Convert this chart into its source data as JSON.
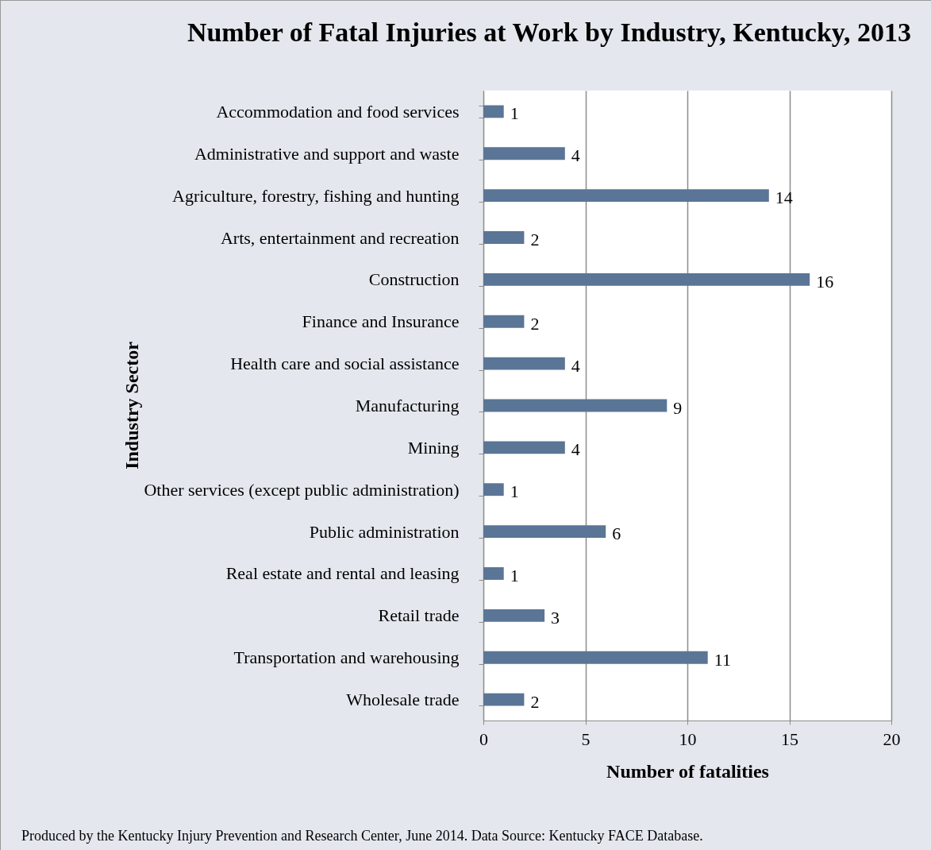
{
  "chart_data": {
    "type": "bar",
    "orientation": "horizontal",
    "title": "Number of Fatal Injuries at Work by Industry, Kentucky, 2013",
    "xlabel": "Number of fatalities",
    "ylabel": "Industry Sector",
    "categories": [
      "Accommodation and food services",
      "Administrative and support and waste",
      "Agriculture, forestry, fishing and hunting",
      "Arts, entertainment and recreation",
      "Construction",
      "Finance and Insurance",
      "Health care and social assistance",
      "Manufacturing",
      "Mining",
      "Other services (except public administration)",
      "Public administration",
      "Real estate and rental and leasing",
      "Retail trade",
      "Transportation and warehousing",
      "Wholesale trade"
    ],
    "values": [
      1,
      4,
      14,
      2,
      16,
      2,
      4,
      9,
      4,
      1,
      6,
      1,
      3,
      11,
      2
    ],
    "color": "#5a7596",
    "xlim": [
      0,
      20
    ],
    "xticks": [
      0,
      5,
      10,
      15,
      20
    ],
    "grid": "x",
    "data_labels": true,
    "annotations": [
      "Produced by the Kentucky Injury Prevention and Research Center, June 2014. Data Source:  Kentucky FACE Database."
    ]
  }
}
